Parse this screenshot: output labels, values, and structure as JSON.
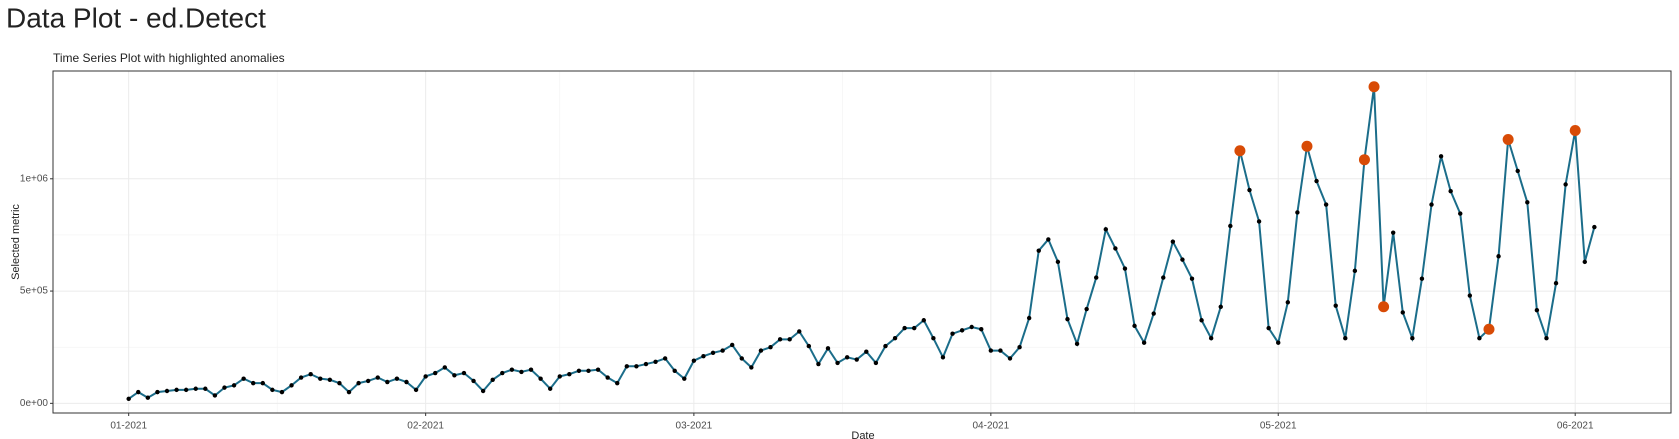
{
  "chart_data": {
    "type": "line",
    "page_title": "Data Plot - ed.Detect",
    "title": "Time Series Plot with highlighted anomalies",
    "x_label": "Date",
    "y_label": "Selected metric",
    "x": [
      0,
      1,
      2,
      3,
      4,
      5,
      6,
      7,
      8,
      9,
      10,
      11,
      12,
      13,
      14,
      15,
      16,
      17,
      18,
      19,
      20,
      21,
      22,
      23,
      24,
      25,
      26,
      27,
      28,
      29,
      30,
      31,
      32,
      33,
      34,
      35,
      36,
      37,
      38,
      39,
      40,
      41,
      42,
      43,
      44,
      45,
      46,
      47,
      48,
      49,
      50,
      51,
      52,
      53,
      54,
      55,
      56,
      57,
      58,
      59,
      60,
      61,
      62,
      63,
      64,
      65,
      66,
      67,
      68,
      69,
      70,
      71,
      72,
      73,
      74,
      75,
      76,
      77,
      78,
      79,
      80,
      81,
      82,
      83,
      84,
      85,
      86,
      87,
      88,
      89,
      90,
      91,
      92,
      93,
      94,
      95,
      96,
      97,
      98,
      99,
      100,
      101,
      102,
      103,
      104,
      105,
      106,
      107,
      108,
      109,
      110,
      111,
      112,
      113,
      114,
      115,
      116,
      117,
      118,
      119,
      120,
      121,
      122,
      123,
      124,
      125,
      126,
      127,
      128,
      129,
      130,
      131,
      132,
      133,
      134,
      135,
      136,
      137,
      138,
      139,
      140,
      141,
      142,
      143,
      144,
      145,
      146,
      147,
      148,
      149,
      150,
      151,
      152,
      153
    ],
    "values": [
      20000,
      50000,
      25000,
      50000,
      55000,
      60000,
      60000,
      65000,
      65000,
      35000,
      70000,
      80000,
      110000,
      90000,
      90000,
      60000,
      50000,
      80000,
      115000,
      130000,
      110000,
      105000,
      90000,
      50000,
      90000,
      100000,
      115000,
      95000,
      110000,
      95000,
      60000,
      120000,
      135000,
      160000,
      125000,
      135000,
      100000,
      55000,
      105000,
      135000,
      150000,
      140000,
      150000,
      110000,
      65000,
      120000,
      130000,
      145000,
      145000,
      150000,
      115000,
      90000,
      165000,
      165000,
      175000,
      185000,
      200000,
      145000,
      110000,
      190000,
      210000,
      225000,
      235000,
      260000,
      200000,
      160000,
      235000,
      250000,
      285000,
      285000,
      320000,
      255000,
      175000,
      245000,
      180000,
      205000,
      195000,
      230000,
      180000,
      255000,
      290000,
      335000,
      335000,
      370000,
      290000,
      205000,
      310000,
      325000,
      340000,
      330000,
      235000,
      235000,
      200000,
      250000,
      380000,
      680000,
      730000,
      630000,
      375000,
      265000,
      420000,
      560000,
      775000,
      690000,
      600000,
      345000,
      270000,
      400000,
      560000,
      720000,
      640000,
      555000,
      370000,
      290000,
      430000,
      790000,
      1125000,
      950000,
      810000,
      335000,
      270000,
      450000,
      850000,
      1145000,
      990000,
      885000,
      435000,
      290000,
      590000,
      1085000,
      1410000,
      430000,
      760000,
      405000,
      290000,
      555000,
      885000,
      1100000,
      945000,
      845000,
      480000,
      290000,
      330000,
      655000,
      1175000,
      1035000,
      895000,
      415000,
      290000,
      535000,
      975000,
      1215000,
      630000,
      785000
    ],
    "color": "#1b6d8a",
    "point_color": "#000000",
    "anomalies": {
      "x": [
        116,
        123,
        129,
        130,
        131,
        142,
        144,
        151
      ],
      "values": [
        1125000,
        1145000,
        1085000,
        1410000,
        430000,
        330000,
        1175000,
        1215000
      ],
      "color": "#d84b06"
    },
    "xlim": [
      -7.9,
      161
    ],
    "xticks": [
      {
        "value": 0,
        "label": "01-2021"
      },
      {
        "value": 31,
        "label": "02-2021"
      },
      {
        "value": 59,
        "label": "03-2021"
      },
      {
        "value": 90,
        "label": "04-2021"
      },
      {
        "value": 120,
        "label": "05-2021"
      },
      {
        "value": 151,
        "label": "06-2021"
      }
    ],
    "ylim": [
      -43000,
      1480000
    ],
    "yticks": [
      {
        "value": 0,
        "label": "0e+00"
      },
      {
        "value": 500000,
        "label": "5e+05"
      },
      {
        "value": 1000000,
        "label": "1e+06"
      }
    ],
    "grid": true
  }
}
